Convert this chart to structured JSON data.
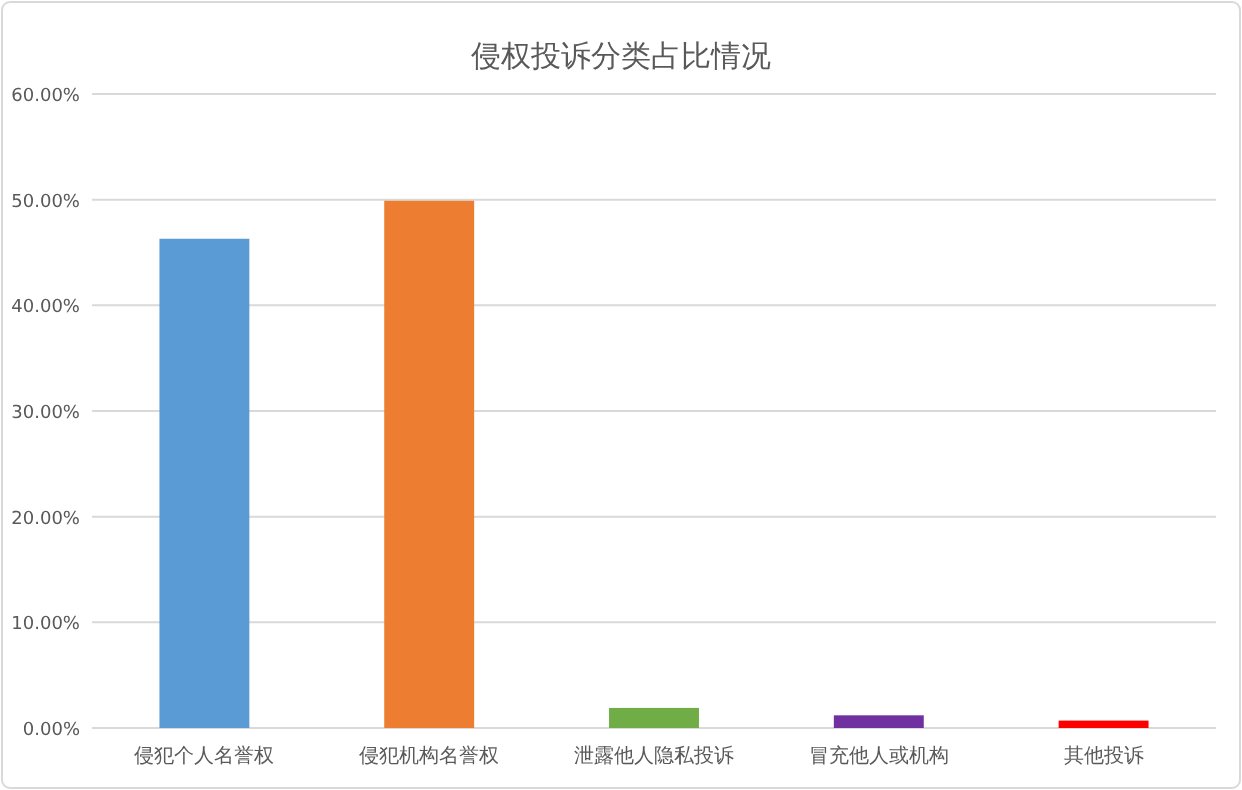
{
  "chart_data": {
    "type": "bar",
    "title": "侵权投诉分类占比情况",
    "categories": [
      "侵犯个人名誉权",
      "侵犯机构名誉权",
      "泄露他人隐私投诉",
      "冒充他人或机构",
      "其他投诉"
    ],
    "values": [
      46.3,
      49.9,
      1.9,
      1.2,
      0.7
    ],
    "colors": [
      "#5b9bd5",
      "#ed7d31",
      "#70ad47",
      "#7030a0",
      "#ff0000"
    ],
    "ylim": [
      0,
      60
    ],
    "yticks": [
      {
        "value": 0,
        "label": "0.00%"
      },
      {
        "value": 10,
        "label": "10.00%"
      },
      {
        "value": 20,
        "label": "20.00%"
      },
      {
        "value": 30,
        "label": "30.00%"
      },
      {
        "value": 40,
        "label": "40.00%"
      },
      {
        "value": 50,
        "label": "50.00%"
      },
      {
        "value": 60,
        "label": "60.00%"
      }
    ],
    "grid": "y"
  }
}
